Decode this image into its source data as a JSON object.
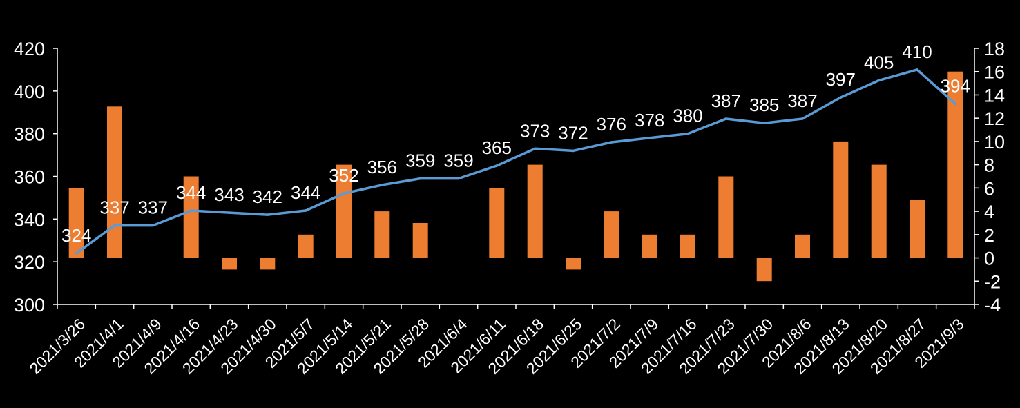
{
  "colors": {
    "background": "#000000",
    "bar": "#ED7D31",
    "line": "#5B9BD5",
    "axis": "#ffffff",
    "text": "#ffffff"
  },
  "chart_data": {
    "type": "bar",
    "title": "",
    "xlabel": "",
    "ylabel": "",
    "categories": [
      "2021/3/26",
      "2021/4/1",
      "2021/4/9",
      "2021/4/16",
      "2021/4/23",
      "2021/4/30",
      "2021/5/7",
      "2021/5/14",
      "2021/5/21",
      "2021/5/28",
      "2021/6/4",
      "2021/6/11",
      "2021/6/18",
      "2021/6/25",
      "2021/7/2",
      "2021/7/9",
      "2021/7/16",
      "2021/7/23",
      "2021/7/30",
      "2021/8/6",
      "2021/8/13",
      "2021/8/20",
      "2021/8/27",
      "2021/9/3"
    ],
    "series": [
      {
        "type": "line",
        "axis": "left",
        "values": [
          324,
          337,
          337,
          344,
          343,
          342,
          344,
          352,
          356,
          359,
          359,
          365,
          373,
          372,
          376,
          378,
          380,
          387,
          385,
          387,
          397,
          405,
          410,
          394
        ],
        "data_labels": true
      },
      {
        "type": "bar",
        "axis": "right",
        "values": [
          6,
          13,
          0,
          7,
          -1,
          -1,
          2,
          8,
          4,
          3,
          0,
          6,
          8,
          -1,
          4,
          2,
          2,
          7,
          -2,
          2,
          10,
          8,
          5,
          16
        ],
        "data_labels": false
      }
    ],
    "y_left": {
      "min": 300,
      "max": 420,
      "step": 20,
      "ticks": [
        "300",
        "320",
        "340",
        "360",
        "380",
        "400",
        "420"
      ]
    },
    "y_right": {
      "min": -4,
      "max": 18,
      "step": 2,
      "ticks": [
        "-4",
        "-2",
        "0",
        "2",
        "4",
        "6",
        "8",
        "10",
        "12",
        "14",
        "16",
        "18"
      ]
    },
    "grid": false,
    "legend": "none"
  }
}
